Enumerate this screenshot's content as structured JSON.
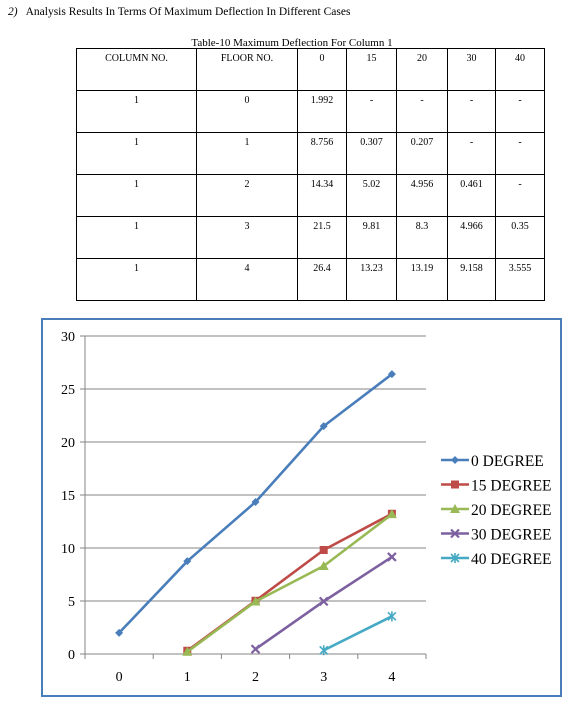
{
  "heading": {
    "number": "2)",
    "text": "Analysis Results In Terms Of Maximum Deflection In Different Cases"
  },
  "table": {
    "caption": "Table-10 Maximum Deflection For Column 1",
    "headers": [
      "COLUMN NO.",
      "FLOOR NO.",
      "0",
      "15",
      "20",
      "30",
      "40"
    ],
    "rows": [
      [
        "1",
        "0",
        "1.992",
        "-",
        "-",
        "-",
        "-"
      ],
      [
        "1",
        "1",
        "8.756",
        "0.307",
        "0.207",
        "-",
        "-"
      ],
      [
        "1",
        "2",
        "14.34",
        "5.02",
        "4.956",
        "0.461",
        "-"
      ],
      [
        "1",
        "3",
        "21.5",
        "9.81",
        "8.3",
        "4.966",
        "0.35"
      ],
      [
        "1",
        "4",
        "26.4",
        "13.23",
        "13.19",
        "9.158",
        "3.555"
      ]
    ]
  },
  "chart_data": {
    "type": "line",
    "x": [
      0,
      1,
      2,
      3,
      4
    ],
    "xlim": [
      -0.5,
      4.5
    ],
    "ylim": [
      0,
      30
    ],
    "yticks": [
      0,
      5,
      10,
      15,
      20,
      25,
      30
    ],
    "grid": true,
    "legend_position": "right",
    "series": [
      {
        "name": "0 DEGREE",
        "color": "#4a7ebb",
        "marker": "diamond",
        "x": [
          0,
          1,
          2,
          3,
          4
        ],
        "y": [
          1.992,
          8.756,
          14.34,
          21.5,
          26.4
        ]
      },
      {
        "name": "15 DEGREE",
        "color": "#be4b48",
        "marker": "square",
        "x": [
          1,
          2,
          3,
          4
        ],
        "y": [
          0.307,
          5.02,
          9.81,
          13.23
        ]
      },
      {
        "name": "20 DEGREE",
        "color": "#98b954",
        "marker": "triangle",
        "x": [
          1,
          2,
          3,
          4
        ],
        "y": [
          0.207,
          4.956,
          8.3,
          13.19
        ]
      },
      {
        "name": "30 DEGREE",
        "color": "#7d60a0",
        "marker": "x",
        "x": [
          2,
          3,
          4
        ],
        "y": [
          0.461,
          4.966,
          9.158
        ]
      },
      {
        "name": "40 DEGREE",
        "color": "#46aac5",
        "marker": "star",
        "x": [
          3,
          4
        ],
        "y": [
          0.35,
          3.555
        ]
      }
    ]
  }
}
